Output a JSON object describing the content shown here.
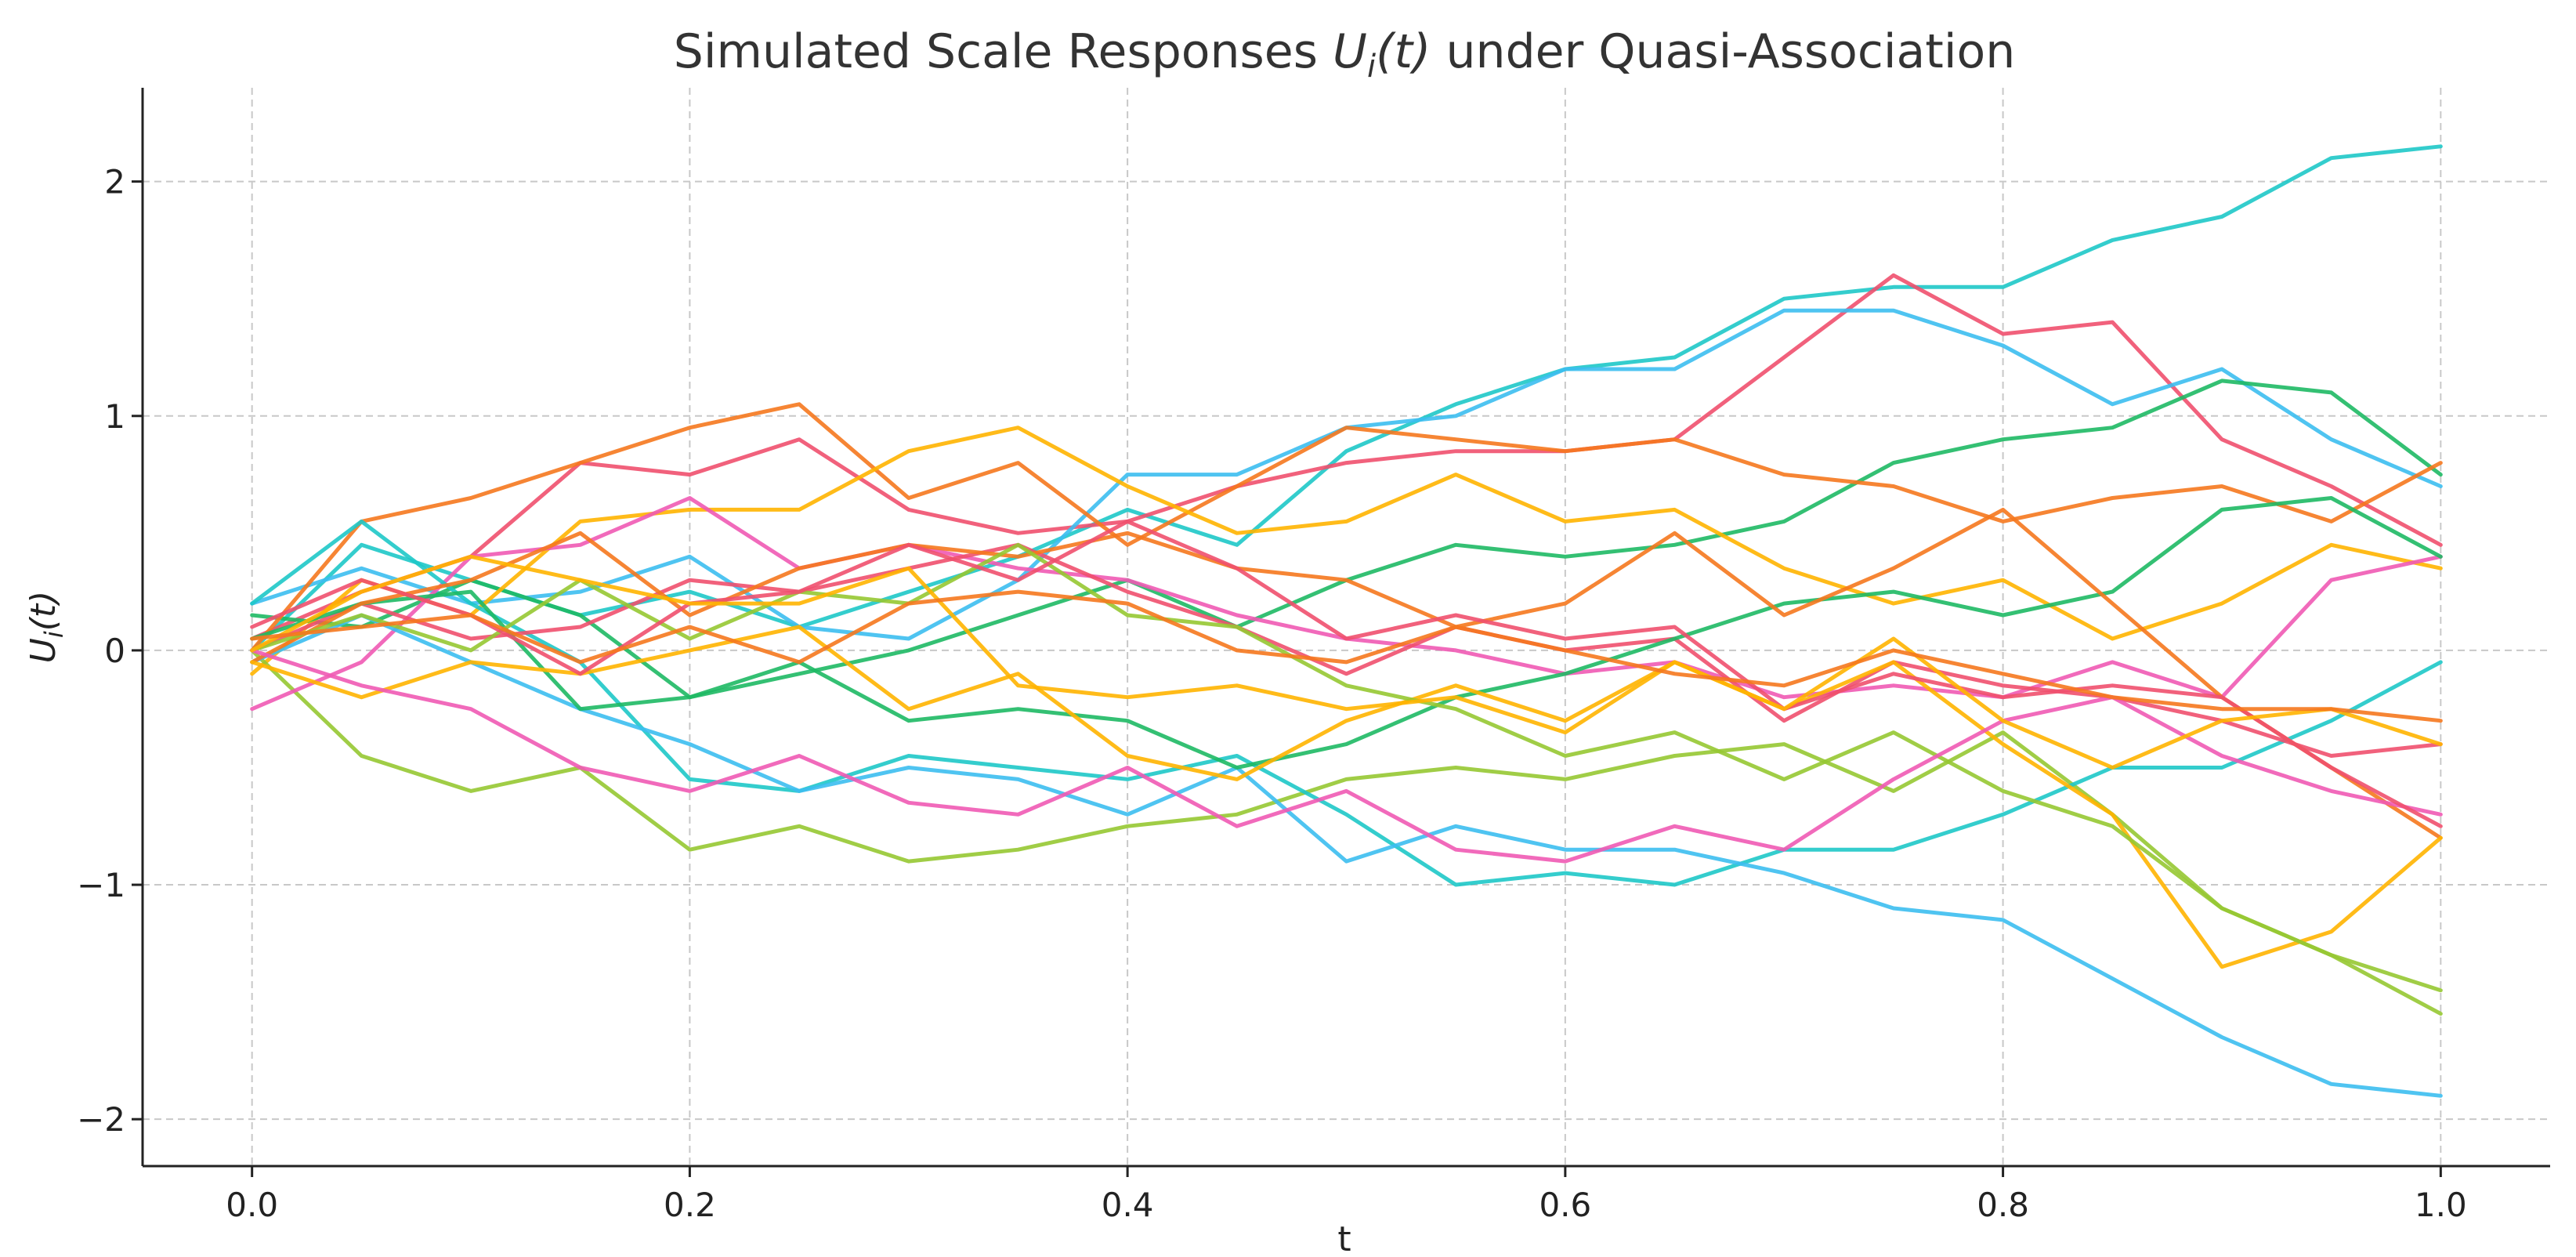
{
  "chart_data": {
    "type": "line",
    "title_main": "Simulated Scale Responses ",
    "title_var": "U",
    "title_sub": "i",
    "title_arg": "(t)",
    "title_rest": " under Quasi-Association",
    "xlabel": "t",
    "ylabel_var": "U",
    "ylabel_sub": "i",
    "ylabel_arg": "(t)",
    "xlim": [
      -0.05,
      1.05
    ],
    "ylim": [
      -2.2,
      2.4
    ],
    "xticks": [
      0.0,
      0.2,
      0.4,
      0.6,
      0.8,
      1.0
    ],
    "xtick_labels": [
      "0.0",
      "0.2",
      "0.4",
      "0.6",
      "0.8",
      "1.0"
    ],
    "yticks": [
      2,
      1,
      0,
      -1,
      -2
    ],
    "ytick_labels": [
      "2",
      "1",
      "0",
      "−1",
      "−2"
    ],
    "grid": true,
    "colors": [
      "#1ec8c8",
      "#f0506e",
      "#3cbef0",
      "#1eb964",
      "#f5781e",
      "#ffb400",
      "#96c832",
      "#f05ab4"
    ],
    "x": [
      0,
      0.05,
      0.1,
      0.15,
      0.2,
      0.25,
      0.3,
      0.35,
      0.4,
      0.45,
      0.5,
      0.55,
      0.6,
      0.65,
      0.7,
      0.75,
      0.8,
      0.85,
      0.9,
      0.95,
      1.0
    ],
    "series": [
      {
        "color": "#1ec8c8",
        "values": [
          0.0,
          0.45,
          0.3,
          0.15,
          0.25,
          0.1,
          0.25,
          0.4,
          0.6,
          0.45,
          0.85,
          1.05,
          1.2,
          1.25,
          1.5,
          1.55,
          1.55,
          1.75,
          1.85,
          2.1,
          2.15
        ]
      },
      {
        "color": "#f0506e",
        "values": [
          0.05,
          0.25,
          0.4,
          0.8,
          0.75,
          0.9,
          0.6,
          0.5,
          0.55,
          0.7,
          0.8,
          0.85,
          0.85,
          0.9,
          1.25,
          1.6,
          1.35,
          1.4,
          0.9,
          0.7,
          0.45
        ]
      },
      {
        "color": "#3cbef0",
        "values": [
          0.2,
          0.35,
          0.2,
          0.25,
          0.4,
          0.1,
          0.05,
          0.3,
          0.75,
          0.75,
          0.95,
          1.0,
          1.2,
          1.2,
          1.45,
          1.45,
          1.3,
          1.05,
          1.2,
          0.9,
          0.7
        ]
      },
      {
        "color": "#1eb964",
        "values": [
          0.15,
          0.1,
          0.3,
          0.15,
          -0.2,
          -0.1,
          0.0,
          0.15,
          0.3,
          0.1,
          0.3,
          0.45,
          0.4,
          0.45,
          0.55,
          0.8,
          0.9,
          0.95,
          1.15,
          1.1,
          0.75
        ]
      },
      {
        "color": "#f5781e",
        "values": [
          0.0,
          0.55,
          0.65,
          0.8,
          0.95,
          1.05,
          0.65,
          0.8,
          0.45,
          0.7,
          0.95,
          0.9,
          0.85,
          0.9,
          0.75,
          0.7,
          0.55,
          0.65,
          0.7,
          0.55,
          0.8
        ]
      },
      {
        "color": "#ffb400",
        "values": [
          -0.1,
          0.3,
          0.15,
          0.55,
          0.6,
          0.6,
          0.85,
          0.95,
          0.7,
          0.5,
          0.55,
          0.75,
          0.55,
          0.6,
          0.35,
          0.2,
          0.3,
          0.05,
          0.2,
          0.45,
          0.35
        ]
      },
      {
        "color": "#96c832",
        "values": [
          0.0,
          -0.45,
          -0.6,
          -0.5,
          -0.85,
          -0.75,
          -0.9,
          -0.85,
          -0.75,
          -0.7,
          -0.55,
          -0.5,
          -0.55,
          -0.45,
          -0.4,
          -0.6,
          -0.35,
          -0.7,
          -1.1,
          -1.3,
          -1.45
        ]
      },
      {
        "color": "#f05ab4",
        "values": [
          -0.25,
          -0.05,
          0.4,
          0.45,
          0.65,
          0.35,
          0.45,
          0.35,
          0.3,
          0.15,
          0.05,
          0.0,
          -0.1,
          -0.05,
          -0.2,
          -0.15,
          -0.2,
          -0.05,
          -0.2,
          0.3,
          0.4
        ]
      },
      {
        "color": "#1ec8c8",
        "values": [
          0.2,
          0.55,
          0.2,
          -0.05,
          -0.55,
          -0.6,
          -0.45,
          -0.5,
          -0.55,
          -0.45,
          -0.7,
          -1.0,
          -0.95,
          -1.0,
          -0.85,
          -0.85,
          -0.7,
          -0.5,
          -0.5,
          -0.3,
          -0.05
        ]
      },
      {
        "color": "#f0506e",
        "values": [
          0.0,
          0.2,
          0.05,
          0.1,
          0.3,
          0.25,
          0.35,
          0.45,
          0.25,
          0.1,
          -0.1,
          0.1,
          0.0,
          0.05,
          -0.3,
          -0.05,
          -0.15,
          -0.2,
          -0.3,
          -0.45,
          -0.4
        ]
      },
      {
        "color": "#3cbef0",
        "values": [
          -0.05,
          0.15,
          -0.05,
          -0.25,
          -0.4,
          -0.6,
          -0.5,
          -0.55,
          -0.7,
          -0.5,
          -0.9,
          -0.75,
          -0.85,
          -0.85,
          -0.95,
          -1.1,
          -1.15,
          -1.4,
          -1.65,
          -1.85,
          -1.9
        ]
      },
      {
        "color": "#1eb964",
        "values": [
          0.05,
          0.2,
          0.25,
          -0.25,
          -0.2,
          -0.05,
          -0.3,
          -0.25,
          -0.3,
          -0.5,
          -0.4,
          -0.2,
          -0.1,
          0.05,
          0.2,
          0.25,
          0.15,
          0.25,
          0.6,
          0.65,
          0.4
        ]
      },
      {
        "color": "#f5781e",
        "values": [
          -0.05,
          0.2,
          0.3,
          0.5,
          0.15,
          0.35,
          0.45,
          0.4,
          0.5,
          0.35,
          0.3,
          0.1,
          0.2,
          0.5,
          0.15,
          0.35,
          0.6,
          0.2,
          -0.2,
          -0.5,
          -0.8
        ]
      },
      {
        "color": "#ffb400",
        "values": [
          -0.05,
          -0.2,
          -0.05,
          -0.1,
          0.0,
          0.1,
          -0.25,
          -0.1,
          -0.45,
          -0.55,
          -0.3,
          -0.15,
          -0.3,
          -0.05,
          -0.25,
          -0.05,
          -0.4,
          -0.7,
          -1.35,
          -1.2,
          -0.8
        ]
      },
      {
        "color": "#96c832",
        "values": [
          0.0,
          0.15,
          0.0,
          0.3,
          0.05,
          0.25,
          0.2,
          0.45,
          0.15,
          0.1,
          -0.15,
          -0.25,
          -0.45,
          -0.35,
          -0.55,
          -0.35,
          -0.6,
          -0.75,
          -1.1,
          -1.3,
          -1.55
        ]
      },
      {
        "color": "#f05ab4",
        "values": [
          0.0,
          -0.15,
          -0.25,
          -0.5,
          -0.6,
          -0.45,
          -0.65,
          -0.7,
          -0.5,
          -0.75,
          -0.6,
          -0.85,
          -0.9,
          -0.75,
          -0.85,
          -0.55,
          -0.3,
          -0.2,
          -0.45,
          -0.6,
          -0.7
        ]
      },
      {
        "color": "#f0506e",
        "values": [
          0.1,
          0.3,
          0.15,
          -0.1,
          0.2,
          0.25,
          0.45,
          0.3,
          0.55,
          0.35,
          0.05,
          0.15,
          0.05,
          0.1,
          -0.25,
          -0.1,
          -0.2,
          -0.15,
          -0.2,
          -0.5,
          -0.75
        ]
      },
      {
        "color": "#ffb400",
        "values": [
          0.0,
          0.25,
          0.4,
          0.3,
          0.2,
          0.2,
          0.35,
          -0.15,
          -0.2,
          -0.15,
          -0.25,
          -0.2,
          -0.35,
          -0.05,
          -0.25,
          0.05,
          -0.3,
          -0.5,
          -0.3,
          -0.25,
          -0.4
        ]
      },
      {
        "color": "#f5781e",
        "values": [
          0.05,
          0.1,
          0.15,
          -0.05,
          0.1,
          -0.05,
          0.2,
          0.25,
          0.2,
          0.0,
          -0.05,
          0.1,
          0.0,
          -0.1,
          -0.15,
          0.0,
          -0.1,
          -0.2,
          -0.25,
          -0.25,
          -0.3
        ]
      }
    ]
  }
}
